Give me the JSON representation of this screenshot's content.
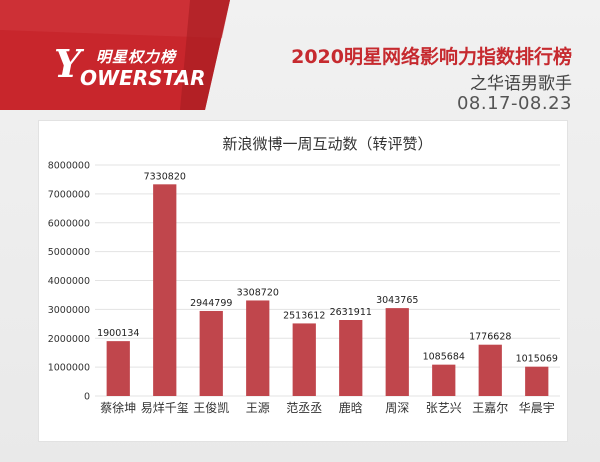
{
  "brand": {
    "logo_top": "明星权力榜",
    "logo_bottom": "OWERSTAR",
    "logo_letter": "Y",
    "accent": "#c62a2f"
  },
  "header": {
    "title": "2020明星网络影响力指数排行榜",
    "subtitle": "之华语男歌手",
    "date_range": "08.17-08.23"
  },
  "chart_data": {
    "type": "bar",
    "title": "新浪微博一周互动数（转评赞）",
    "categories": [
      "蔡徐坤",
      "易烊千玺",
      "王俊凯",
      "王源",
      "范丞丞",
      "鹿晗",
      "周深",
      "张艺兴",
      "王嘉尔",
      "华晨宇"
    ],
    "values": [
      1900134,
      7330820,
      2944799,
      3308720,
      2513612,
      2631911,
      3043765,
      1085684,
      1776628,
      1015069
    ],
    "ylim": [
      0,
      8000000
    ],
    "yticks": [
      "0",
      "1000000",
      "2000000",
      "3000000",
      "4000000",
      "5000000",
      "6000000",
      "7000000",
      "8000000"
    ],
    "bar_color": "#c0464c",
    "grid": true,
    "xlabel": "",
    "ylabel": ""
  }
}
